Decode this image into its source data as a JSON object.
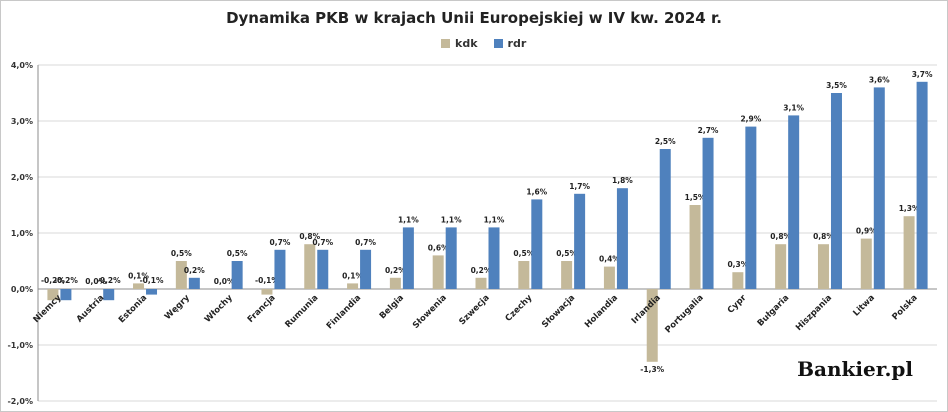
{
  "chart_data": {
    "type": "bar",
    "title": "Dynamika PKB w krajach Unii Europejskiej w IV kw. 2024 r.",
    "xlabel": "",
    "ylabel": "",
    "ylim": [
      -2.0,
      4.0
    ],
    "yticks": [
      -2.0,
      -1.0,
      0.0,
      1.0,
      2.0,
      3.0,
      4.0
    ],
    "ytick_labels": [
      "-2,0%",
      "-1,0%",
      "0,0%",
      "1,0%",
      "2,0%",
      "3,0%",
      "4,0%"
    ],
    "grid": true,
    "legend": "top-center",
    "categories": [
      "Niemcy",
      "Austria",
      "Estonia",
      "Węgry",
      "Włochy",
      "Francja",
      "Rumunia",
      "Finlandia",
      "Belgia",
      "Słowenia",
      "Szwecja",
      "Czechy",
      "Słowacja",
      "Holandia",
      "Irlandia",
      "Portugalia",
      "Cypr",
      "Bułgaria",
      "Hiszpania",
      "Litwa",
      "Polska"
    ],
    "series": [
      {
        "name": "kdk",
        "color": "#c4b99a",
        "values": [
          -0.2,
          0.0,
          0.1,
          0.5,
          0.0,
          -0.1,
          0.8,
          0.1,
          0.2,
          0.6,
          0.2,
          0.5,
          0.5,
          0.4,
          -1.3,
          1.5,
          0.3,
          0.8,
          0.8,
          0.9,
          1.3
        ],
        "labels": [
          "-0,2%",
          "0,0%",
          "0,1%",
          "0,5%",
          "0,0%",
          "-0,1%",
          "0,8%",
          "0,1%",
          "0,2%",
          "0,6%",
          "0,2%",
          "0,5%",
          "0,5%",
          "0,4%",
          "-1,3%",
          "1,5%",
          "0,3%",
          "0,8%",
          "0,8%",
          "0,9%",
          "1,3%"
        ]
      },
      {
        "name": "rdr",
        "color": "#4f81bd",
        "values": [
          -0.2,
          -0.2,
          -0.1,
          0.2,
          0.5,
          0.7,
          0.7,
          0.7,
          1.1,
          1.1,
          1.1,
          1.6,
          1.7,
          1.8,
          2.5,
          2.7,
          2.9,
          3.1,
          3.5,
          3.6,
          3.7
        ],
        "labels": [
          "-0,2%",
          "-0,2%",
          "-0,1%",
          "0,2%",
          "0,5%",
          "0,7%",
          "0,7%",
          "0,7%",
          "1,1%",
          "1,1%",
          "1,1%",
          "1,6%",
          "1,7%",
          "1,8%",
          "2,5%",
          "2,7%",
          "2,9%",
          "3,1%",
          "3,5%",
          "3,6%",
          "3,7%"
        ]
      }
    ]
  },
  "branding": {
    "logo_text": "Bankier.pl"
  }
}
